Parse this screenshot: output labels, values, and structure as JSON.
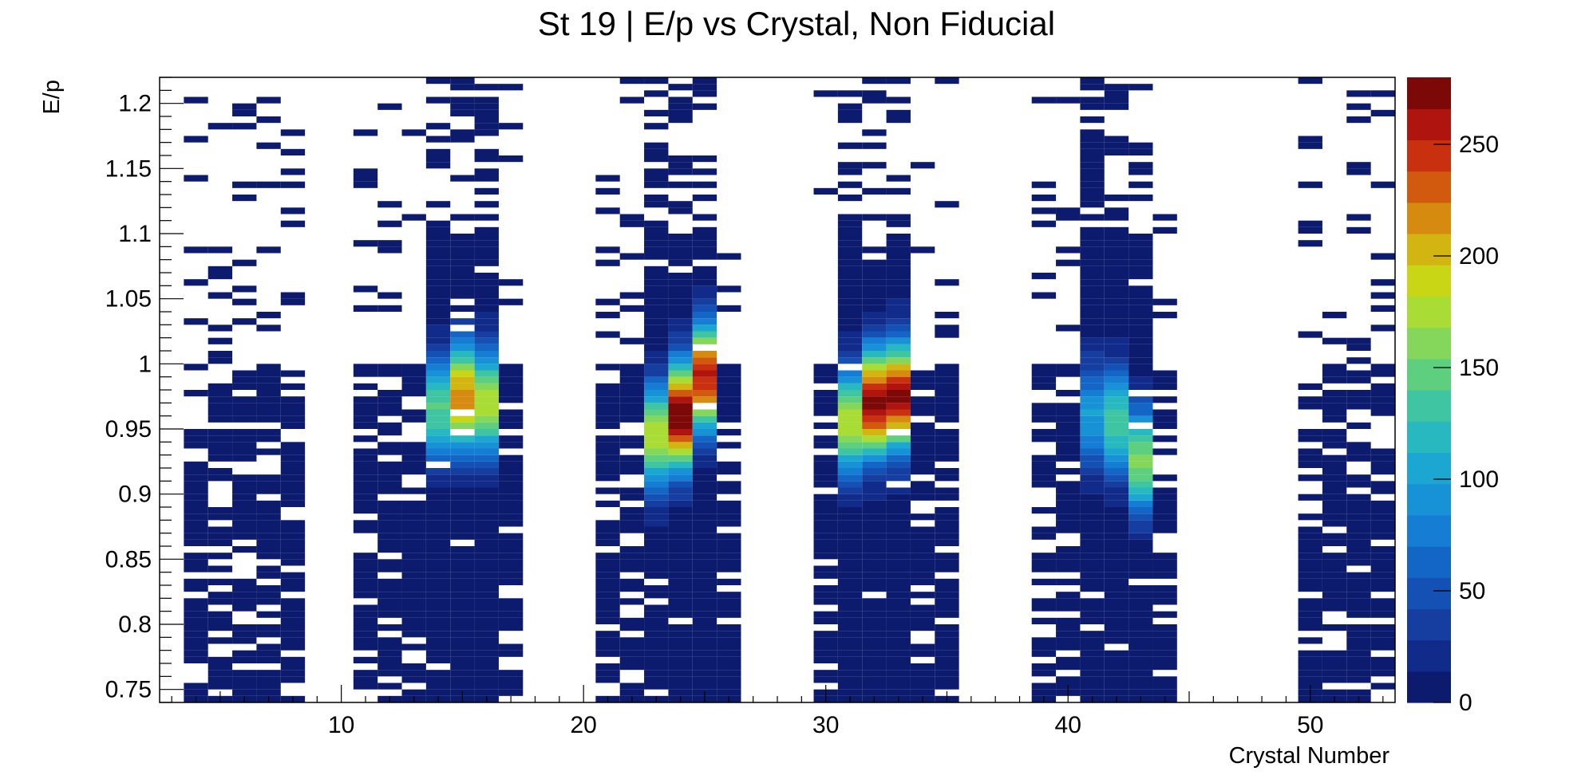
{
  "chart_data": {
    "type": "heatmap",
    "title": "St 19 | E/p vs Crystal, Non Fiducial",
    "xlabel": "Crystal Number",
    "ylabel": "E/p",
    "xlim": [
      2.5,
      53.5
    ],
    "ylim": [
      0.74,
      1.22
    ],
    "x_ticks": [
      "10",
      "20",
      "30",
      "40",
      "50"
    ],
    "y_ticks": [
      "0.75",
      "0.8",
      "0.85",
      "0.9",
      "0.95",
      "1",
      "1.05",
      "1.1",
      "1.15",
      "1.2"
    ],
    "colorbar": {
      "range": [
        0,
        280
      ],
      "ticks": [
        "0",
        "50",
        "100",
        "150",
        "200",
        "250"
      ],
      "levels": 20
    },
    "grid": false,
    "peaks": [
      {
        "crystal": 15,
        "ep_center": 0.975,
        "max": 215
      },
      {
        "crystal": 16,
        "ep_center": 0.97,
        "max": 175
      },
      {
        "crystal": 14,
        "ep_center": 0.965,
        "max": 140
      },
      {
        "crystal": 23,
        "ep_center": 0.945,
        "max": 170
      },
      {
        "crystal": 24,
        "ep_center": 0.96,
        "max": 280
      },
      {
        "crystal": 25,
        "ep_center": 0.99,
        "max": 250
      },
      {
        "crystal": 31,
        "ep_center": 0.955,
        "max": 175
      },
      {
        "crystal": 32,
        "ep_center": 0.97,
        "max": 270
      },
      {
        "crystal": 33,
        "ep_center": 0.975,
        "max": 265
      },
      {
        "crystal": 41,
        "ep_center": 0.96,
        "max": 95
      },
      {
        "crystal": 42,
        "ep_center": 0.955,
        "max": 135
      },
      {
        "crystal": 43,
        "ep_center": 0.925,
        "max": 155
      }
    ],
    "occupied_crystals": [
      4,
      5,
      6,
      7,
      8,
      11,
      12,
      13,
      14,
      15,
      16,
      17,
      21,
      22,
      23,
      24,
      25,
      26,
      30,
      31,
      32,
      33,
      34,
      35,
      39,
      40,
      41,
      42,
      43,
      44,
      50,
      51,
      52,
      53
    ]
  }
}
